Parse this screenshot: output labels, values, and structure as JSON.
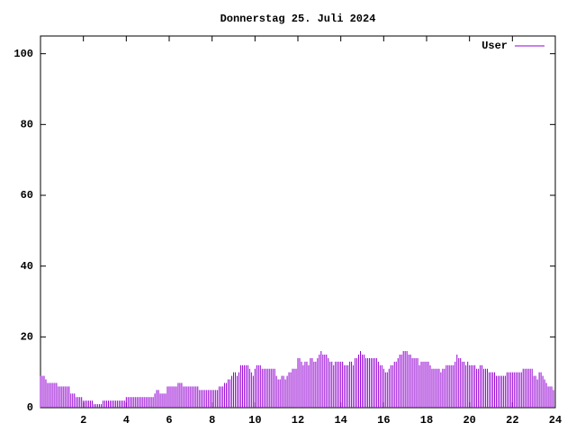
{
  "chart_data": {
    "type": "impulse",
    "title": "Donnerstag 25. Juli 2024",
    "xlim": [
      0,
      24
    ],
    "xticks": [
      2,
      4,
      6,
      8,
      10,
      12,
      14,
      16,
      18,
      20,
      22,
      24
    ],
    "ylim": [
      0,
      105
    ],
    "yticks": [
      0,
      20,
      40,
      60,
      80,
      100
    ],
    "legend": "top-right",
    "series": [
      {
        "name": "User",
        "color": "#9400d3",
        "x": [
          0,
          0.083,
          0.167,
          0.25,
          0.333,
          0.417,
          0.5,
          0.583,
          0.667,
          0.75,
          0.833,
          0.917,
          1,
          1.083,
          1.167,
          1.25,
          1.333,
          1.417,
          1.5,
          1.583,
          1.667,
          1.75,
          1.833,
          1.917,
          2,
          2.083,
          2.167,
          2.25,
          2.333,
          2.417,
          2.5,
          2.583,
          2.667,
          2.75,
          2.833,
          2.917,
          3,
          3.083,
          3.167,
          3.25,
          3.333,
          3.417,
          3.5,
          3.583,
          3.667,
          3.75,
          3.833,
          3.917,
          4,
          4.083,
          4.167,
          4.25,
          4.333,
          4.417,
          4.5,
          4.583,
          4.667,
          4.75,
          4.833,
          4.917,
          5,
          5.083,
          5.167,
          5.25,
          5.333,
          5.417,
          5.5,
          5.583,
          5.667,
          5.75,
          5.833,
          5.917,
          6,
          6.083,
          6.167,
          6.25,
          6.333,
          6.417,
          6.5,
          6.583,
          6.667,
          6.75,
          6.833,
          6.917,
          7,
          7.083,
          7.167,
          7.25,
          7.333,
          7.417,
          7.5,
          7.583,
          7.667,
          7.75,
          7.833,
          7.917,
          8,
          8.083,
          8.167,
          8.25,
          8.333,
          8.417,
          8.5,
          8.583,
          8.667,
          8.75,
          8.833,
          8.917,
          9,
          9.083,
          9.167,
          9.25,
          9.333,
          9.417,
          9.5,
          9.583,
          9.667,
          9.75,
          9.833,
          9.917,
          10,
          10.083,
          10.167,
          10.25,
          10.333,
          10.417,
          10.5,
          10.583,
          10.667,
          10.75,
          10.833,
          10.917,
          11,
          11.083,
          11.167,
          11.25,
          11.333,
          11.417,
          11.5,
          11.583,
          11.667,
          11.75,
          11.833,
          11.917,
          12,
          12.083,
          12.167,
          12.25,
          12.333,
          12.417,
          12.5,
          12.583,
          12.667,
          12.75,
          12.833,
          12.917,
          13,
          13.083,
          13.167,
          13.25,
          13.333,
          13.417,
          13.5,
          13.583,
          13.667,
          13.75,
          13.833,
          13.917,
          14,
          14.083,
          14.167,
          14.25,
          14.333,
          14.417,
          14.5,
          14.583,
          14.667,
          14.75,
          14.833,
          14.917,
          15,
          15.083,
          15.167,
          15.25,
          15.333,
          15.417,
          15.5,
          15.583,
          15.667,
          15.75,
          15.833,
          15.917,
          16,
          16.083,
          16.167,
          16.25,
          16.333,
          16.417,
          16.5,
          16.583,
          16.667,
          16.75,
          16.833,
          16.917,
          17,
          17.083,
          17.167,
          17.25,
          17.333,
          17.417,
          17.5,
          17.583,
          17.667,
          17.75,
          17.833,
          17.917,
          18,
          18.083,
          18.167,
          18.25,
          18.333,
          18.417,
          18.5,
          18.583,
          18.667,
          18.75,
          18.833,
          18.917,
          19,
          19.083,
          19.167,
          19.25,
          19.333,
          19.417,
          19.5,
          19.583,
          19.667,
          19.75,
          19.833,
          19.917,
          20,
          20.083,
          20.167,
          20.25,
          20.333,
          20.417,
          20.5,
          20.583,
          20.667,
          20.75,
          20.833,
          20.917,
          21,
          21.083,
          21.167,
          21.25,
          21.333,
          21.417,
          21.5,
          21.583,
          21.667,
          21.75,
          21.833,
          21.917,
          22,
          22.083,
          22.167,
          22.25,
          22.333,
          22.417,
          22.5,
          22.583,
          22.667,
          22.75,
          22.833,
          22.917,
          23,
          23.083,
          23.167,
          23.25,
          23.333,
          23.417,
          23.5,
          23.583,
          23.667,
          23.75,
          23.833,
          23.917
        ],
        "values": [
          9,
          9,
          9,
          8,
          7,
          7,
          7,
          7,
          7,
          7,
          6,
          6,
          6,
          6,
          6,
          6,
          6,
          4,
          4,
          4,
          3,
          3,
          3,
          3,
          2,
          2,
          2,
          2,
          2,
          2,
          1,
          1,
          1,
          1,
          1,
          2,
          2,
          2,
          2,
          2,
          2,
          2,
          2,
          2,
          2,
          2,
          2,
          2,
          3,
          3,
          3,
          3,
          3,
          3,
          3,
          3,
          3,
          3,
          3,
          3,
          3,
          3,
          3,
          3,
          4,
          5,
          5,
          4,
          4,
          4,
          4,
          6,
          6,
          6,
          6,
          6,
          6,
          7,
          7,
          7,
          6,
          6,
          6,
          6,
          6,
          6,
          6,
          6,
          6,
          5,
          5,
          5,
          5,
          5,
          5,
          5,
          5,
          5,
          5,
          5,
          6,
          6,
          6,
          7,
          7,
          8,
          8,
          9,
          10,
          10,
          9,
          10,
          12,
          12,
          12,
          12,
          12,
          11,
          10,
          9,
          11,
          12,
          12,
          12,
          11,
          11,
          11,
          11,
          11,
          11,
          11,
          11,
          9,
          8,
          8,
          9,
          9,
          8,
          9,
          10,
          10,
          11,
          11,
          11,
          14,
          14,
          13,
          12,
          13,
          13,
          12,
          14,
          14,
          13,
          13,
          14,
          15,
          16,
          15,
          15,
          15,
          14,
          13,
          13,
          12,
          13,
          13,
          13,
          13,
          13,
          12,
          12,
          12,
          13,
          13,
          12,
          14,
          14,
          15,
          16,
          15,
          15,
          14,
          14,
          14,
          14,
          14,
          14,
          14,
          13,
          12,
          12,
          11,
          10,
          10,
          11,
          12,
          12,
          13,
          13,
          14,
          15,
          15,
          16,
          16,
          16,
          15,
          15,
          14,
          14,
          14,
          14,
          12,
          13,
          13,
          13,
          13,
          13,
          12,
          11,
          11,
          11,
          11,
          11,
          10,
          11,
          11,
          12,
          12,
          12,
          12,
          12,
          13,
          15,
          14,
          14,
          13,
          13,
          12,
          13,
          12,
          12,
          12,
          12,
          11,
          11,
          12,
          12,
          11,
          11,
          11,
          10,
          10,
          10,
          10,
          9,
          9,
          9,
          9,
          9,
          9,
          10,
          10,
          10,
          10,
          10,
          10,
          10,
          10,
          10,
          11,
          11,
          11,
          11,
          11,
          11,
          9,
          9,
          8,
          10,
          10,
          9,
          8,
          7,
          6,
          6,
          6,
          5
        ]
      }
    ]
  }
}
